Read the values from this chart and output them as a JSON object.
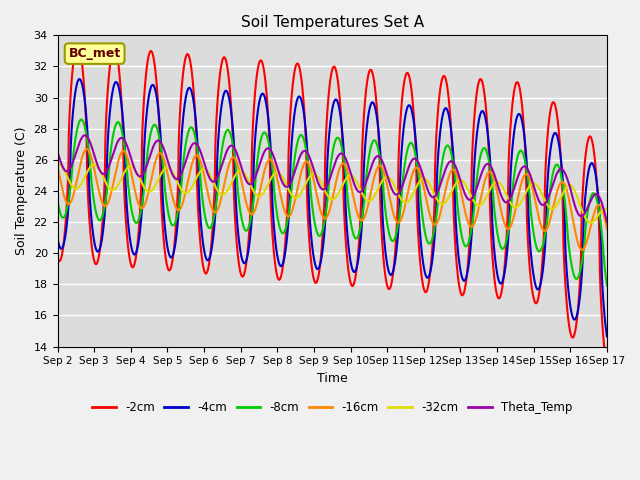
{
  "title": "Soil Temperatures Set A",
  "xlabel": "Time",
  "ylabel": "Soil Temperature (C)",
  "ylim": [
    14,
    34
  ],
  "xlim": [
    0,
    15
  ],
  "annotation": "BC_met",
  "plot_bg": "#dcdcdc",
  "fig_bg": "#f0f0f0",
  "series": [
    {
      "label": "-2cm",
      "color": "#ff0000",
      "lw": 1.5
    },
    {
      "label": "-4cm",
      "color": "#0000cc",
      "lw": 1.5
    },
    {
      "label": "-8cm",
      "color": "#00cc00",
      "lw": 1.5
    },
    {
      "label": "-16cm",
      "color": "#ff8800",
      "lw": 1.5
    },
    {
      "label": "-32cm",
      "color": "#dddd00",
      "lw": 1.5
    },
    {
      "label": "Theta_Temp",
      "color": "#9900aa",
      "lw": 1.5
    }
  ],
  "xtick_labels": [
    "Sep 2",
    "Sep 3",
    "Sep 4",
    "Sep 5",
    "Sep 6",
    "Sep 7",
    "Sep 8",
    "Sep 9",
    "Sep 10",
    "Sep 11",
    "Sep 12",
    "Sep 13",
    "Sep 14",
    "Sep 15",
    "Sep 16",
    "Sep 17"
  ],
  "ytick_values": [
    14,
    16,
    18,
    20,
    22,
    24,
    26,
    28,
    30,
    32,
    34
  ]
}
